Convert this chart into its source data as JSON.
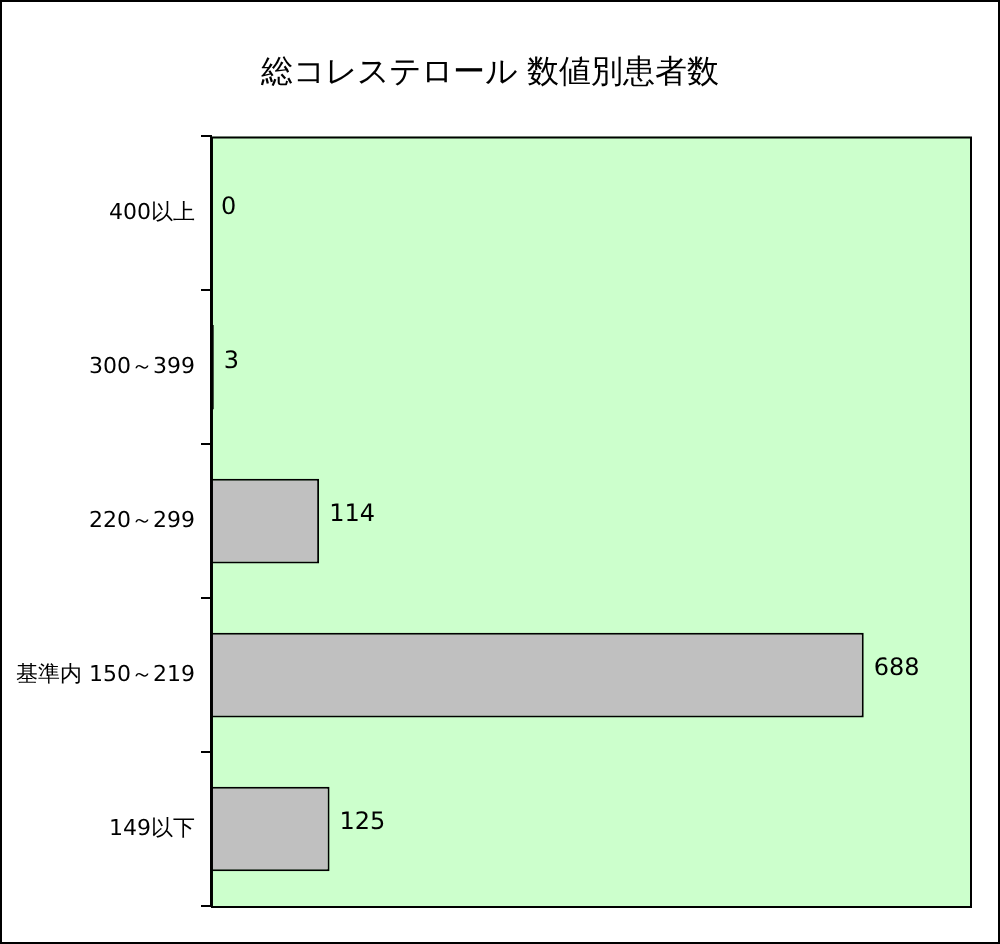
{
  "chart_data": {
    "type": "bar",
    "orientation": "horizontal",
    "title": "総コレステロール 数値別患者数",
    "categories": [
      "400以上",
      "300～399",
      "220～299",
      "基準内 150～219",
      "149以下"
    ],
    "series": [
      {
        "color": "#c0c0c0",
        "values": [
          0,
          3,
          114,
          688,
          125
        ]
      }
    ],
    "data_labels": true,
    "tick_labels": "y",
    "legend": false
  }
}
